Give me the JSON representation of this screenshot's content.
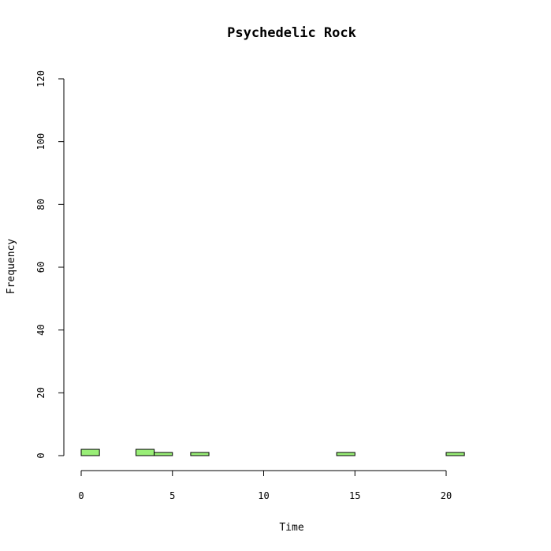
{
  "chart_data": {
    "type": "bar",
    "title": "Psychedelic Rock",
    "xlabel": "Time",
    "ylabel": "Frequency",
    "bar_color": "#99ee77",
    "xlim": [
      0,
      24
    ],
    "ylim": [
      0,
      120
    ],
    "x_ticks": [
      0,
      5,
      10,
      15,
      20
    ],
    "y_ticks": [
      0,
      20,
      40,
      60,
      80,
      100,
      120
    ],
    "bin_width": 1,
    "bins": [
      {
        "start": 0,
        "end": 1,
        "count": 2
      },
      {
        "start": 1,
        "end": 2,
        "count": 0
      },
      {
        "start": 2,
        "end": 3,
        "count": 0
      },
      {
        "start": 3,
        "end": 4,
        "count": 2
      },
      {
        "start": 4,
        "end": 5,
        "count": 1
      },
      {
        "start": 5,
        "end": 6,
        "count": 0
      },
      {
        "start": 6,
        "end": 7,
        "count": 1
      },
      {
        "start": 7,
        "end": 8,
        "count": 0
      },
      {
        "start": 8,
        "end": 9,
        "count": 0
      },
      {
        "start": 9,
        "end": 10,
        "count": 0
      },
      {
        "start": 10,
        "end": 11,
        "count": 0
      },
      {
        "start": 11,
        "end": 12,
        "count": 0
      },
      {
        "start": 12,
        "end": 13,
        "count": 0
      },
      {
        "start": 13,
        "end": 14,
        "count": 0
      },
      {
        "start": 14,
        "end": 15,
        "count": 1
      },
      {
        "start": 15,
        "end": 16,
        "count": 0
      },
      {
        "start": 16,
        "end": 17,
        "count": 0
      },
      {
        "start": 17,
        "end": 18,
        "count": 0
      },
      {
        "start": 18,
        "end": 19,
        "count": 0
      },
      {
        "start": 19,
        "end": 20,
        "count": 0
      },
      {
        "start": 20,
        "end": 21,
        "count": 1
      },
      {
        "start": 21,
        "end": 22,
        "count": 0
      },
      {
        "start": 22,
        "end": 23,
        "count": 0
      },
      {
        "start": 23,
        "end": 24,
        "count": 0
      }
    ]
  }
}
